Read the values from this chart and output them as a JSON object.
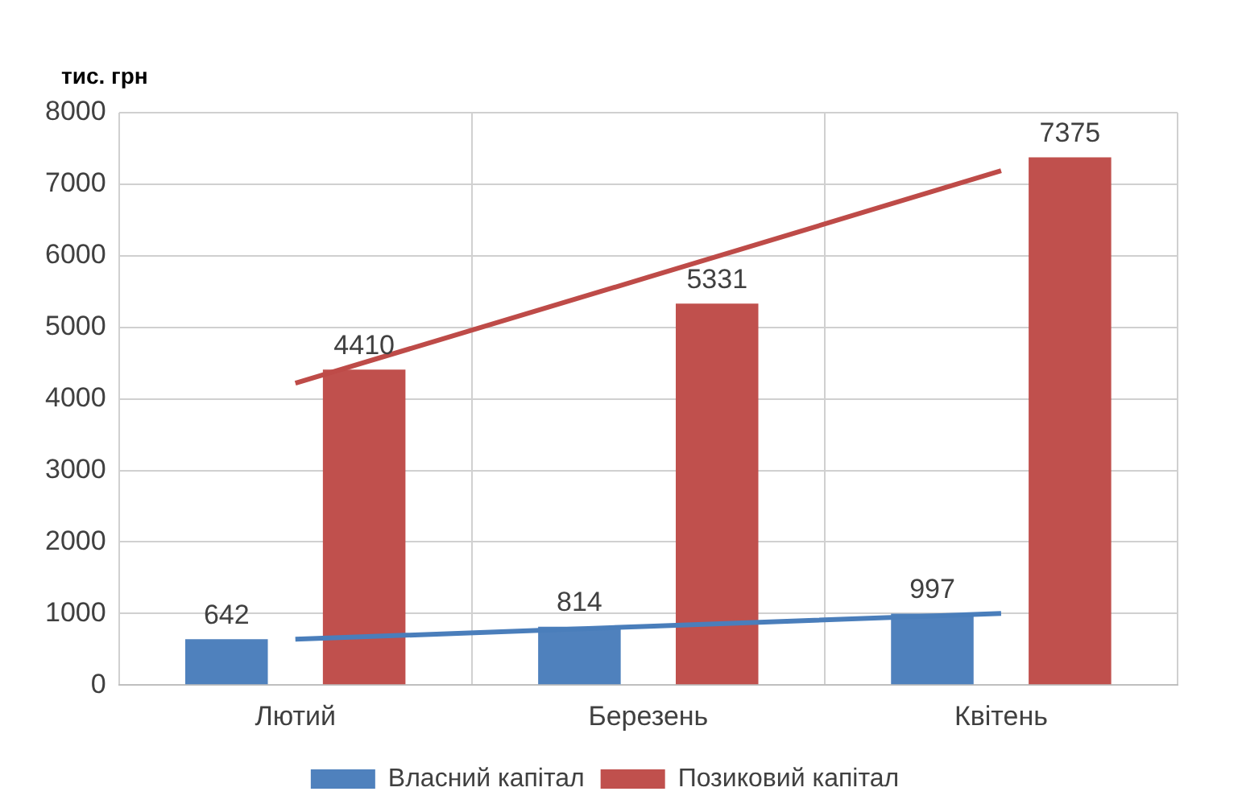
{
  "chart_data": {
    "type": "bar",
    "ylabel": "тис. грн",
    "categories": [
      "Лютий",
      "Березень",
      "Квітень"
    ],
    "series": [
      {
        "name": "Власний капітал",
        "color": "#4f81bd",
        "values": [
          642,
          814,
          997
        ],
        "value_labels": [
          "642",
          "814",
          "997"
        ]
      },
      {
        "name": "Позиковий капітал",
        "color": "#c0504d",
        "values": [
          4410,
          5331,
          7375
        ],
        "value_labels": [
          "4410",
          "5331",
          "7375"
        ]
      },
      {
        "type": "line",
        "color": "#4a7ebb",
        "values": [
          640,
          820,
          1000
        ]
      },
      {
        "type": "line",
        "color": "#be4b48",
        "values": [
          4220,
          5700,
          7190
        ]
      }
    ],
    "ylim": [
      0,
      8000
    ],
    "yticks": [
      0,
      1000,
      2000,
      3000,
      4000,
      5000,
      6000,
      7000,
      8000
    ],
    "grid": true,
    "legend": "bottom",
    "marker": "none"
  }
}
